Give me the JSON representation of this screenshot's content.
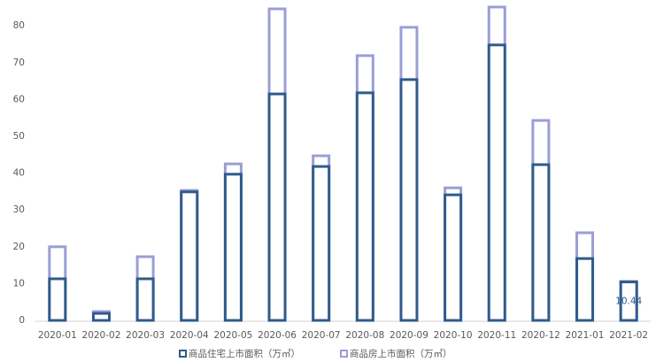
{
  "chart_data": {
    "type": "bar",
    "categories": [
      "2020-01",
      "2020-02",
      "2020-03",
      "2020-04",
      "2020-05",
      "2020-06",
      "2020-07",
      "2020-08",
      "2020-09",
      "2020-10",
      "2020-11",
      "2020-12",
      "2021-01",
      "2021-02"
    ],
    "series": [
      {
        "name": "商品房上市面积（万㎡）",
        "color": "#9b9ed6",
        "values": [
          20.0,
          2.4,
          17.3,
          35.3,
          42.5,
          84.6,
          44.7,
          71.9,
          79.6,
          36.0,
          85.1,
          54.3,
          23.8,
          10.6
        ]
      },
      {
        "name": "商品住宅上市面积（万㎡）",
        "color": "#2f5b8c",
        "values": [
          11.3,
          1.9,
          11.3,
          34.9,
          39.7,
          61.5,
          41.8,
          61.8,
          65.4,
          34.1,
          74.8,
          42.3,
          16.8,
          10.44
        ],
        "show_label_at": [
          13
        ]
      }
    ],
    "legend_order": [
      1,
      0
    ],
    "ylim": [
      0,
      86
    ],
    "yticks": [
      0,
      10,
      20,
      30,
      40,
      50,
      60,
      70,
      80
    ],
    "grid": false
  }
}
